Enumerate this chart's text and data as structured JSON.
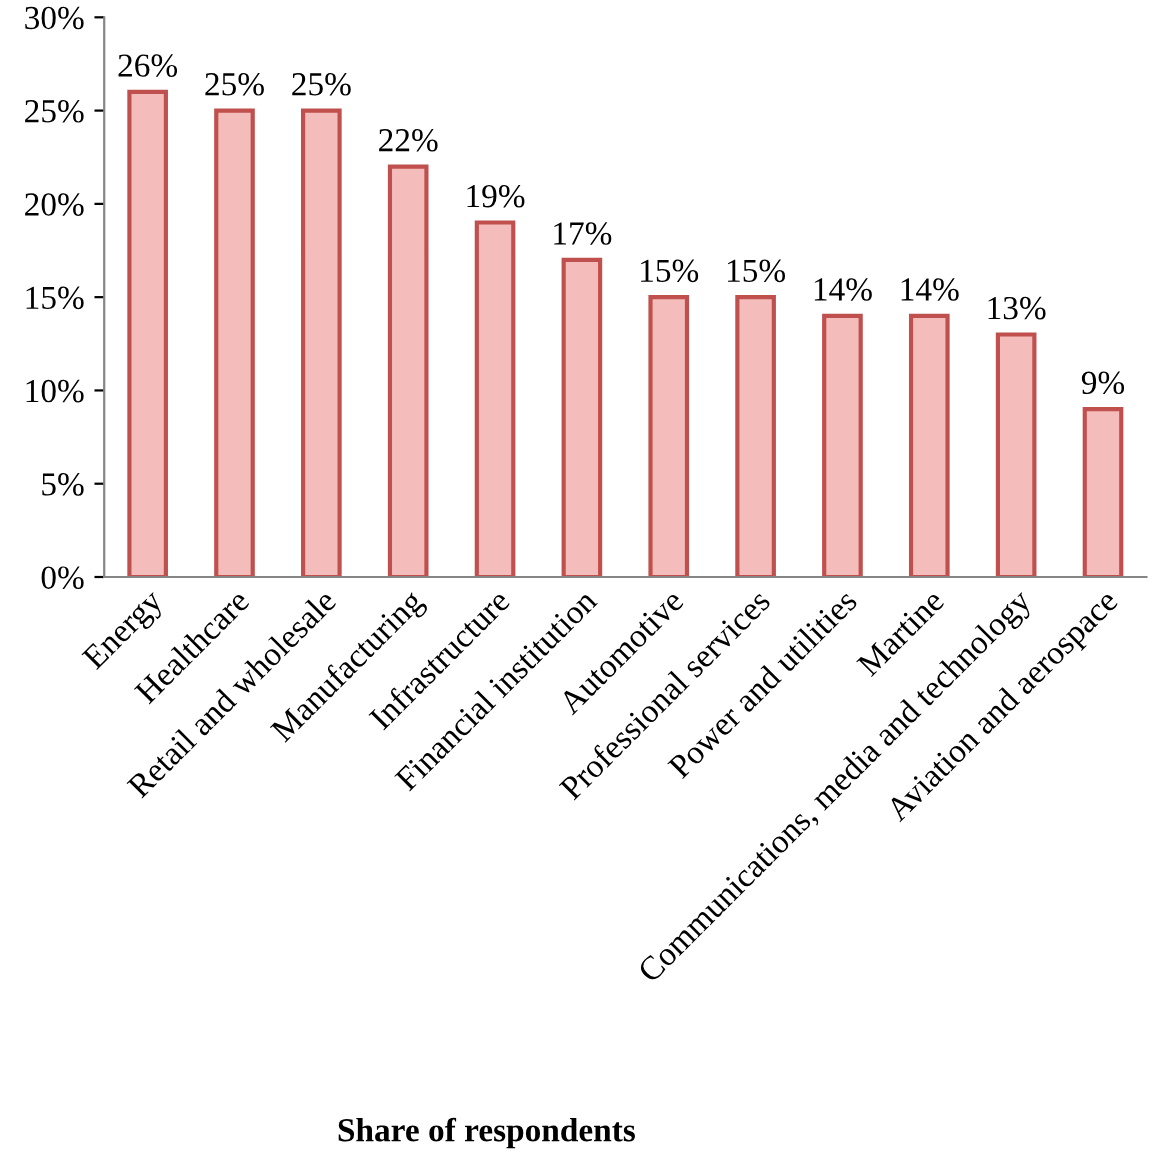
{
  "chart_data": {
    "type": "bar",
    "xlabel": "Share of respondents",
    "categories": [
      "Energy",
      "Healthcare",
      "Retail and wholesale",
      "Manufacturing",
      "Infrastructure",
      "Financial institution",
      "Automotive",
      "Professional services",
      "Power and utilities",
      "Martine",
      "Communications, media and technology",
      "Aviation and aerospace"
    ],
    "values": [
      26,
      25,
      25,
      22,
      19,
      17,
      15,
      15,
      14,
      14,
      13,
      9
    ],
    "value_labels": [
      "26%",
      "25%",
      "25%",
      "22%",
      "19%",
      "17%",
      "15%",
      "15%",
      "14%",
      "14%",
      "13%",
      "9%"
    ],
    "color": "#f4bcbb",
    "ylim": [
      0,
      30
    ],
    "yticks": [
      {
        "value": 0,
        "label": "0%"
      },
      {
        "value": 5,
        "label": "5%"
      },
      {
        "value": 10,
        "label": "10%"
      },
      {
        "value": 15,
        "label": "15%"
      },
      {
        "value": 20,
        "label": "20%"
      },
      {
        "value": 25,
        "label": "25%"
      },
      {
        "value": 30,
        "label": "30%"
      }
    ],
    "grid": false,
    "legend": false
  }
}
